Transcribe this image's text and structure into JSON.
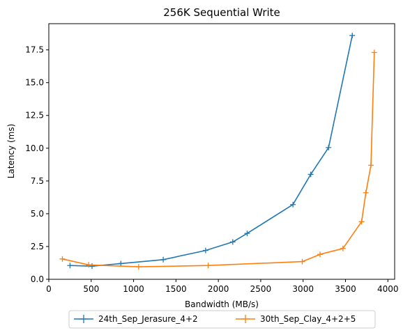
{
  "chart_data": {
    "type": "line",
    "title": "256K  Sequential Write",
    "xlabel": "Bandwidth (MB/s)",
    "ylabel": "Latency (ms)",
    "xlim": [
      0,
      4080
    ],
    "ylim": [
      0,
      19.5
    ],
    "xticks": [
      0,
      500,
      1000,
      1500,
      2000,
      2500,
      3000,
      3500,
      4000
    ],
    "yticks": [
      0.0,
      2.5,
      5.0,
      7.5,
      10.0,
      12.5,
      15.0,
      17.5
    ],
    "xtick_labels": [
      "0",
      "500",
      "1000",
      "1500",
      "2000",
      "2500",
      "3000",
      "3500",
      "4000"
    ],
    "ytick_labels": [
      "0.0",
      "2.5",
      "5.0",
      "7.5",
      "10.0",
      "12.5",
      "15.0",
      "17.5"
    ],
    "grid": false,
    "legend_position": "bottom-center",
    "series": [
      {
        "name": "24th_Sep_Jerasure_4+2",
        "color": "#1f77b4",
        "marker": "plus",
        "x": [
          250,
          510,
          850,
          1350,
          1850,
          2170,
          2340,
          2880,
          3090,
          3300,
          3580
        ],
        "y": [
          1.05,
          1.0,
          1.2,
          1.5,
          2.2,
          2.85,
          3.5,
          5.7,
          8.0,
          10.05,
          18.6
        ]
      },
      {
        "name": "30th_Sep_Clay_4+2+5",
        "color": "#ff7f0e",
        "marker": "plus",
        "x": [
          160,
          470,
          1060,
          1880,
          2990,
          3200,
          3470,
          3690,
          3740,
          3800,
          3840
        ],
        "y": [
          1.55,
          1.1,
          0.95,
          1.05,
          1.35,
          1.9,
          2.35,
          4.4,
          6.6,
          8.7,
          17.3
        ]
      }
    ]
  }
}
